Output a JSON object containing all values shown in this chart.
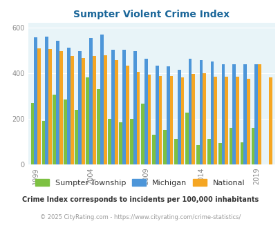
{
  "title": "Sumpter Violent Crime Index",
  "title_color": "#1a6699",
  "bg_color": "#e8f4f8",
  "fig_bg": "#ffffff",
  "years": [
    1999,
    2000,
    2001,
    2002,
    2003,
    2004,
    2005,
    2006,
    2007,
    2008,
    2009,
    2010,
    2011,
    2012,
    2013,
    2014,
    2015,
    2016,
    2017,
    2018,
    2019,
    2020
  ],
  "sumpter": [
    267,
    190,
    305,
    283,
    237,
    382,
    330,
    200,
    185,
    200,
    265,
    130,
    150,
    110,
    225,
    85,
    110,
    92,
    160,
    95,
    160,
    0
  ],
  "michigan": [
    557,
    558,
    541,
    510,
    497,
    553,
    567,
    503,
    503,
    497,
    461,
    431,
    430,
    415,
    463,
    457,
    451,
    438,
    438,
    438,
    438,
    0
  ],
  "national": [
    508,
    505,
    497,
    474,
    464,
    474,
    479,
    457,
    431,
    406,
    392,
    387,
    386,
    380,
    397,
    399,
    383,
    383,
    383,
    375,
    437,
    380
  ],
  "sumpter_color": "#7dc142",
  "michigan_color": "#4d96d9",
  "national_color": "#f5a623",
  "ylim": [
    0,
    620
  ],
  "yticks": [
    0,
    200,
    400,
    600
  ],
  "xtick_years": [
    1999,
    2004,
    2009,
    2014,
    2019
  ],
  "legend_labels": [
    "Sumpter Township",
    "Michigan",
    "National"
  ],
  "footnote1": "Crime Index corresponds to incidents per 100,000 inhabitants",
  "footnote2": "© 2025 CityRating.com - https://www.cityrating.com/crime-statistics/",
  "footnote1_color": "#333333",
  "footnote2_color": "#999999"
}
